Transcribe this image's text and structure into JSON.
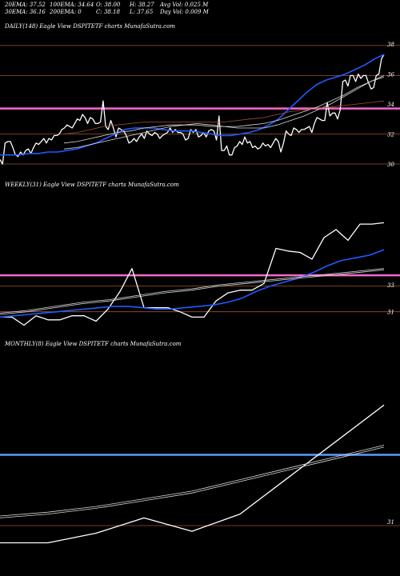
{
  "stats": {
    "ema20": "20EMA: 37.52",
    "ema30": "30EMA: 36.16",
    "ema100": "100EMA: 34.64",
    "ema200": "200EMA: 0",
    "open": "O: 38.00",
    "close": "C: 38.18",
    "high": "H: 38.27",
    "low": "L: 37.65",
    "avgvol": "Avg Vol: 0.025 M",
    "dayvol": "Day Vol: 0.009 M"
  },
  "panels": {
    "daily": "DAILY(148) Eagle  View  DSPITETF charts MunafaSutra.com",
    "weekly": "WEEKLY(31) Eagle  View  DSPITETF charts MunafaSutra.com",
    "monthly": "MONTHLY(8) Eagle  View  DSPITETF charts MunafaSutra.com"
  },
  "chart_data": [
    {
      "type": "line",
      "title": "DAILY(148) Eagle  View  DSPITETF charts MunafaSutra.com",
      "ylim": [
        29.2,
        38.8
      ],
      "y_ticks": [
        "38",
        "36",
        "34",
        "32",
        "30"
      ],
      "horizontal_lines": [
        {
          "value": 37.9,
          "color": "#a0522d"
        },
        {
          "value": 35.9,
          "color": "#a0522d"
        },
        {
          "value": 33.7,
          "color": "#ff66cc"
        },
        {
          "value": 32.0,
          "color": "#a0522d"
        },
        {
          "value": 30.0,
          "color": "#a0522d"
        }
      ],
      "series": [
        {
          "color": "#ffffff",
          "values": [
            30.3,
            30.0,
            31.4,
            31.5,
            31.5,
            31.1,
            30.6,
            30.5,
            30.8,
            30.6,
            30.9,
            31.0,
            30.7,
            31.1,
            31.4,
            31.3,
            31.5,
            31.7,
            31.4,
            31.7,
            31.6,
            31.9,
            31.9,
            32.0,
            32.3,
            32.4,
            32.6,
            32.5,
            32.4,
            32.7,
            33.0,
            32.9,
            33.3,
            33.1,
            32.7,
            33.1,
            33.0,
            32.7,
            32.7,
            32.8,
            34.2,
            32.5,
            32.3,
            32.9,
            32.4,
            31.8,
            32.4,
            32.3,
            32.2,
            31.9,
            31.4,
            31.5,
            31.7,
            31.5,
            31.8,
            32.0,
            31.7,
            32.2,
            32.0,
            31.9,
            32.1,
            32.0,
            31.7,
            31.9,
            32.0,
            32.1,
            32.4,
            32.1,
            32.3,
            32.1,
            32.1,
            32.0,
            31.6,
            31.7,
            32.3,
            32.1,
            32.3,
            31.8,
            31.9,
            32.1,
            31.8,
            32.2,
            32.3,
            32.2,
            31.6,
            33.2,
            30.9,
            30.9,
            31.2,
            30.6,
            30.6,
            31.1,
            31.2,
            31.5,
            31.3,
            31.8,
            31.4,
            31.5,
            31.1,
            31.2,
            31.0,
            31.1,
            31.4,
            31.2,
            31.3,
            31.1,
            31.4,
            31.7,
            31.5,
            30.8,
            31.4,
            32.2,
            32.0,
            31.9,
            32.4,
            32.3,
            32.1,
            32.3,
            32.3,
            32.4,
            32.5,
            32.1,
            32.7,
            33.1,
            33.0,
            32.9,
            32.9,
            34.1,
            33.2,
            33.4,
            33.4,
            33.0,
            33.6,
            35.5,
            35.6,
            35.2,
            35.9,
            35.9,
            35.5,
            36.0,
            35.7,
            35.9,
            35.9,
            35.4,
            35.0,
            35.1,
            35.9,
            36.0,
            37.0,
            37.3
          ]
        },
        {
          "color": "#1f5bff",
          "values": [
            30.6,
            30.6,
            30.6,
            30.7,
            30.7,
            30.8,
            30.8,
            30.9,
            31.0,
            31.2,
            31.4,
            31.7,
            32.0,
            32.3,
            32.4,
            32.4,
            32.4,
            32.3,
            32.2,
            32.2,
            32.2,
            32.1,
            32.0,
            31.9,
            31.9,
            32.0,
            32.1,
            32.3,
            32.6,
            33.0,
            33.6,
            34.2,
            34.8,
            35.3,
            35.6,
            35.8,
            36.0,
            36.3,
            36.6,
            37.0,
            37.3
          ]
        },
        {
          "color": "#d8d8d8",
          "values": [
            31.0,
            31.1,
            31.3,
            31.5,
            31.7,
            31.9,
            32.1,
            32.3,
            32.5,
            32.6,
            32.7,
            32.6,
            32.5,
            32.4,
            32.4,
            32.4,
            32.6,
            32.9,
            33.2,
            33.6,
            34.0,
            34.5,
            35.0,
            35.5,
            35.9
          ]
        },
        {
          "color": "#d8d8d8",
          "values": [
            31.4,
            31.5,
            31.7,
            31.9,
            32.1,
            32.2,
            32.4,
            32.5,
            32.6,
            32.6,
            32.6,
            32.5,
            32.5,
            32.5,
            32.6,
            32.7,
            32.9,
            33.2,
            33.5,
            33.8,
            34.2,
            34.6,
            35.1,
            35.5,
            35.8
          ]
        },
        {
          "color": "#a0522d",
          "values": [
            32.0,
            32.1,
            32.3,
            32.5,
            32.6,
            32.7,
            32.8,
            32.8,
            32.8,
            32.8,
            32.8,
            32.8,
            32.8,
            32.9,
            33.0,
            33.1,
            33.3,
            33.5,
            33.6,
            33.7,
            33.8,
            33.9,
            34.0,
            34.1,
            34.2
          ]
        }
      ]
    },
    {
      "type": "line",
      "title": "WEEKLY(31) Eagle  View  DSPITETF charts MunafaSutra.com",
      "ylim": [
        29.2,
        40.0
      ],
      "y_ticks": [
        "33",
        "31"
      ],
      "horizontal_lines": [
        {
          "value": 33.7,
          "color": "#ff66cc"
        },
        {
          "value": 32.9,
          "color": "#a0522d"
        },
        {
          "value": 31.0,
          "color": "#a0522d"
        }
      ],
      "series": [
        {
          "color": "#ffffff",
          "values": [
            30.6,
            30.6,
            30.0,
            30.7,
            30.4,
            30.4,
            30.7,
            30.7,
            30.3,
            31.2,
            32.5,
            34.2,
            31.3,
            31.3,
            31.3,
            31.0,
            30.6,
            30.6,
            31.8,
            32.4,
            32.6,
            32.6,
            33.1,
            35.7,
            35.5,
            35.4,
            34.9,
            36.5,
            37.1,
            36.3,
            37.5,
            37.5,
            37.6
          ]
        },
        {
          "color": "#1f5bff",
          "values": [
            30.6,
            30.7,
            30.8,
            30.9,
            31.0,
            31.1,
            31.2,
            31.3,
            31.4,
            31.4,
            31.3,
            31.2,
            31.2,
            31.3,
            31.4,
            31.5,
            31.7,
            32.0,
            32.5,
            32.9,
            33.2,
            33.5,
            33.9,
            34.4,
            34.8,
            35.0,
            35.2,
            35.6
          ]
        },
        {
          "color": "#d8d8d8",
          "values": [
            30.8,
            31.0,
            31.3,
            31.6,
            31.8,
            32.1,
            32.4,
            32.6,
            32.9,
            33.1,
            33.3,
            33.5,
            33.7,
            33.9,
            34.1
          ]
        },
        {
          "color": "#d8d8d8",
          "values": [
            30.9,
            31.1,
            31.4,
            31.7,
            31.9,
            32.2,
            32.5,
            32.7,
            33.0,
            33.2,
            33.4,
            33.6,
            33.8,
            34.0,
            34.2
          ]
        }
      ]
    },
    {
      "type": "line",
      "title": "MONTHLY(8) Eagle  View  DSPITETF charts MunafaSutra.com",
      "ylim": [
        29.0,
        40.0
      ],
      "y_ticks": [
        "31"
      ],
      "horizontal_lines": [
        {
          "value": 34.5,
          "color": "#5b9bff"
        },
        {
          "value": 30.8,
          "color": "#a0522d"
        }
      ],
      "series": [
        {
          "color": "#ffffff",
          "values": [
            29.9,
            29.9,
            30.4,
            31.2,
            30.5,
            31.4,
            33.3,
            35.2,
            37.1
          ]
        },
        {
          "color": "#d8d8d8",
          "values": [
            31.3,
            31.5,
            31.8,
            32.2,
            32.6,
            33.2,
            33.8,
            34.4,
            35.0
          ]
        },
        {
          "color": "#d8d8d8",
          "values": [
            31.2,
            31.4,
            31.7,
            32.1,
            32.5,
            33.1,
            33.7,
            34.3,
            34.9
          ]
        }
      ]
    }
  ]
}
